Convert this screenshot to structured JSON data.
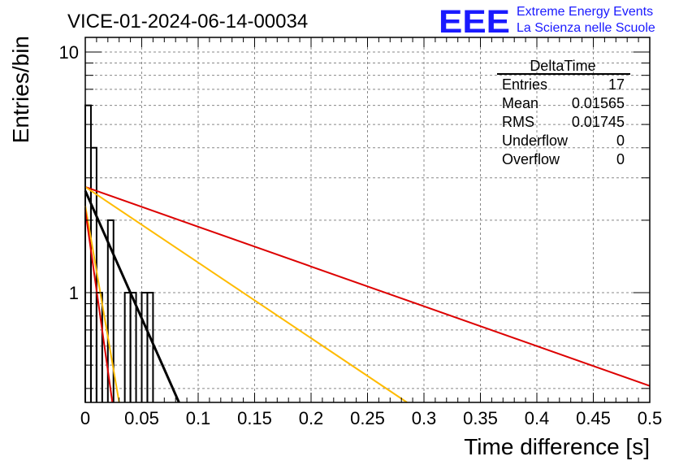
{
  "chart_data": {
    "type": "histogram",
    "title": "VICE-01-2024-06-14-00034",
    "xlabel": "Time difference [s]",
    "ylabel": "Entries/bin",
    "xlim": [
      0,
      0.5
    ],
    "ylim": [
      0.35,
      11.5
    ],
    "yscale": "log",
    "grid": true,
    "x_ticks": [
      "0",
      "0.05",
      "0.1",
      "0.15",
      "0.2",
      "0.25",
      "0.3",
      "0.35",
      "0.4",
      "0.45",
      "0.5"
    ],
    "y_ticks": [
      "1",
      "10"
    ],
    "bin_width": 0.005,
    "bins": [
      {
        "x0": 0.0,
        "count": 6
      },
      {
        "x0": 0.005,
        "count": 4
      },
      {
        "x0": 0.01,
        "count": 1
      },
      {
        "x0": 0.02,
        "count": 2
      },
      {
        "x0": 0.035,
        "count": 1
      },
      {
        "x0": 0.04,
        "count": 1
      },
      {
        "x0": 0.05,
        "count": 1
      },
      {
        "x0": 0.055,
        "count": 1
      }
    ],
    "fit_lines": [
      {
        "color": "#000000",
        "width": 3,
        "points": [
          [
            0.0,
            2.65
          ],
          [
            0.083,
            0.35
          ]
        ]
      },
      {
        "color": "#dd0000",
        "width": 2,
        "points": [
          [
            0.0,
            2.75
          ],
          [
            0.5,
            0.41
          ]
        ]
      },
      {
        "color": "#ffbb00",
        "width": 2,
        "points": [
          [
            0.0,
            2.75
          ],
          [
            0.285,
            0.35
          ]
        ]
      },
      {
        "color": "#ffbb00",
        "width": 2,
        "points": [
          [
            0.0,
            2.3
          ],
          [
            0.03,
            0.35
          ]
        ]
      },
      {
        "color": "#dd0000",
        "width": 2,
        "points": [
          [
            0.0,
            2.2
          ],
          [
            0.024,
            0.35
          ]
        ]
      }
    ],
    "stats_box": {
      "title": "DeltaTime",
      "rows": [
        {
          "label": "Entries",
          "value": "17"
        },
        {
          "label": "Mean",
          "value": "0.01565"
        },
        {
          "label": "RMS",
          "value": "0.01745"
        },
        {
          "label": "Underflow",
          "value": "0"
        },
        {
          "label": "Overflow",
          "value": "0"
        }
      ]
    }
  },
  "brand": {
    "logo": "EEE",
    "line1": "Extreme Energy Events",
    "line2": "La Scienza nelle Scuole",
    "color": "#1a1aff"
  }
}
